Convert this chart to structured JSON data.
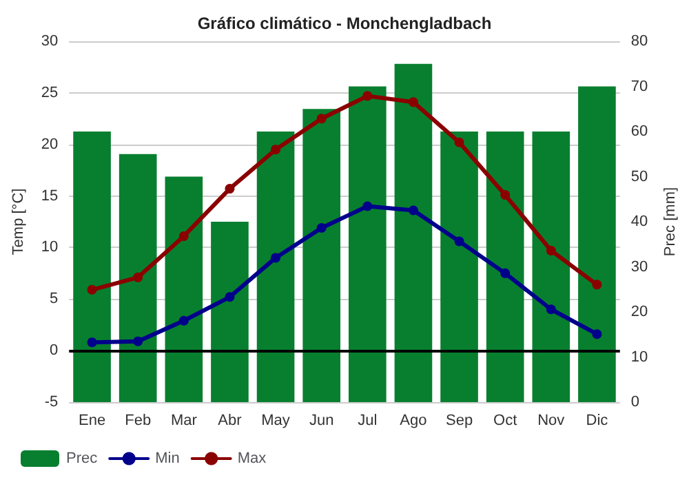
{
  "chart_data": {
    "type": "bar",
    "title": "Gráfico climático - Monchengladbach",
    "ylabel": "Temp [°C]",
    "y2label": "Prec [mm]",
    "categories": [
      "Ene",
      "Feb",
      "Mar",
      "Abr",
      "May",
      "Jun",
      "Jul",
      "Ago",
      "Sep",
      "Oct",
      "Nov",
      "Dic"
    ],
    "series": [
      {
        "name": "Prec",
        "axis": "y2",
        "color": "#087f2f",
        "values": [
          60,
          55,
          50,
          40,
          60,
          65,
          70,
          75,
          60,
          60,
          60,
          70
        ]
      },
      {
        "name": "Min",
        "type": "line",
        "color": "#00008b",
        "marker": "circle",
        "values": [
          0.8,
          0.9,
          2.9,
          5.2,
          9.0,
          11.9,
          14.0,
          13.6,
          10.6,
          7.5,
          4.0,
          1.6
        ]
      },
      {
        "name": "Max",
        "type": "line",
        "color": "#8b0000",
        "marker": "circle",
        "values": [
          5.9,
          7.1,
          11.1,
          15.7,
          19.5,
          22.5,
          24.7,
          24.1,
          20.2,
          15.1,
          9.7,
          6.4
        ]
      }
    ],
    "ylim": [
      -5,
      30
    ],
    "yticks": [
      -5,
      0,
      5,
      10,
      15,
      20,
      25,
      30
    ],
    "y2lim": [
      0,
      80
    ],
    "y2ticks": [
      0,
      10,
      20,
      30,
      40,
      50,
      60,
      70,
      80
    ],
    "ref_lines": [
      {
        "axis": "y",
        "value": 0,
        "color": "#000000"
      }
    ],
    "grid": "y",
    "legend": "bottom left"
  }
}
